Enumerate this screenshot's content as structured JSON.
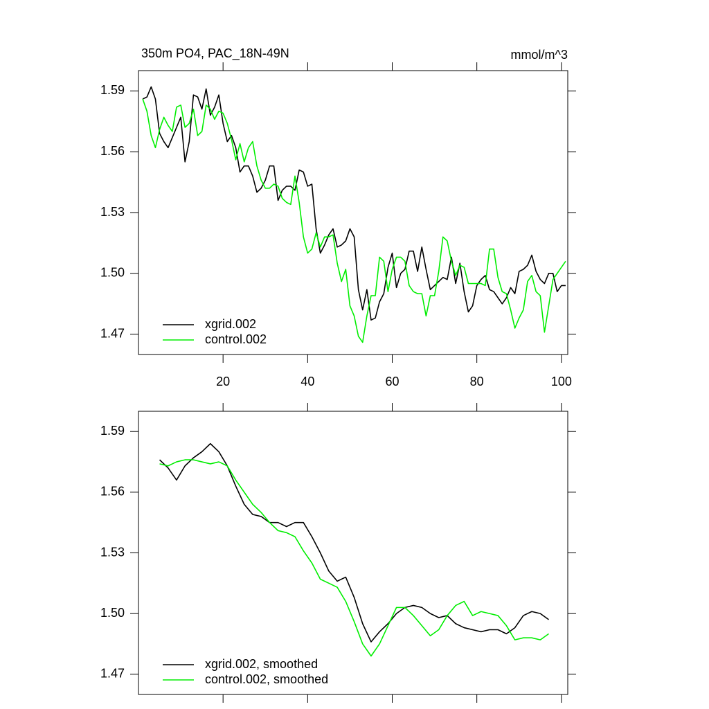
{
  "chart_data": [
    {
      "type": "line",
      "title": "350m PO4, PAC_18N-49N",
      "unit_label": "mmol/m^3",
      "x": [
        1,
        2,
        3,
        4,
        5,
        6,
        7,
        8,
        9,
        10,
        11,
        12,
        13,
        14,
        15,
        16,
        17,
        18,
        19,
        20,
        21,
        22,
        23,
        24,
        25,
        26,
        27,
        28,
        29,
        30,
        31,
        32,
        33,
        34,
        35,
        36,
        37,
        38,
        39,
        40,
        41,
        42,
        43,
        44,
        45,
        46,
        47,
        48,
        49,
        50,
        51,
        52,
        53,
        54,
        55,
        56,
        57,
        58,
        59,
        60,
        61,
        62,
        63,
        64,
        65,
        66,
        67,
        68,
        69,
        70,
        71,
        72,
        73,
        74,
        75,
        76,
        77,
        78,
        79,
        80,
        81,
        82,
        83,
        84,
        85,
        86,
        87,
        88,
        89,
        90,
        91,
        92,
        93,
        94,
        95,
        96,
        97,
        98,
        99,
        100,
        101
      ],
      "series": [
        {
          "name": "xgrid.002",
          "color": "#000000",
          "values": [
            1.586,
            1.587,
            1.592,
            1.586,
            1.569,
            1.565,
            1.562,
            1.567,
            1.572,
            1.577,
            1.555,
            1.565,
            1.588,
            1.587,
            1.581,
            1.591,
            1.578,
            1.582,
            1.588,
            1.574,
            1.565,
            1.568,
            1.562,
            1.55,
            1.553,
            1.553,
            1.548,
            1.54,
            1.542,
            1.546,
            1.553,
            1.553,
            1.536,
            1.541,
            1.543,
            1.543,
            1.541,
            1.551,
            1.55,
            1.543,
            1.544,
            1.522,
            1.51,
            1.514,
            1.519,
            1.522,
            1.513,
            1.514,
            1.516,
            1.522,
            1.518,
            1.492,
            1.482,
            1.492,
            1.477,
            1.478,
            1.486,
            1.49,
            1.503,
            1.51,
            1.493,
            1.5,
            1.502,
            1.511,
            1.511,
            1.501,
            1.513,
            1.502,
            1.492,
            1.494,
            1.496,
            1.498,
            1.497,
            1.508,
            1.495,
            1.505,
            1.491,
            1.481,
            1.484,
            1.494,
            1.497,
            1.499,
            1.492,
            1.491,
            1.488,
            1.485,
            1.488,
            1.493,
            1.49,
            1.501,
            1.502,
            1.504,
            1.509,
            1.501,
            1.497,
            1.495,
            1.5,
            1.5,
            1.491,
            1.494,
            1.494
          ]
        },
        {
          "name": "control.002",
          "color": "#00ee00",
          "values": [
            1.586,
            1.58,
            1.568,
            1.562,
            1.571,
            1.577,
            1.573,
            1.57,
            1.582,
            1.583,
            1.572,
            1.574,
            1.581,
            1.568,
            1.57,
            1.583,
            1.581,
            1.576,
            1.58,
            1.579,
            1.574,
            1.566,
            1.556,
            1.564,
            1.555,
            1.562,
            1.565,
            1.553,
            1.546,
            1.542,
            1.542,
            1.544,
            1.543,
            1.537,
            1.535,
            1.534,
            1.548,
            1.535,
            1.518,
            1.51,
            1.512,
            1.52,
            1.513,
            1.518,
            1.518,
            1.519,
            1.505,
            1.496,
            1.502,
            1.484,
            1.479,
            1.469,
            1.466,
            1.479,
            1.489,
            1.489,
            1.508,
            1.506,
            1.491,
            1.502,
            1.508,
            1.508,
            1.506,
            1.494,
            1.491,
            1.49,
            1.49,
            1.479,
            1.489,
            1.489,
            1.501,
            1.518,
            1.516,
            1.506,
            1.499,
            1.504,
            1.503,
            1.495,
            1.495,
            1.495,
            1.495,
            1.494,
            1.512,
            1.512,
            1.498,
            1.491,
            1.49,
            1.482,
            1.473,
            1.478,
            1.482,
            1.496,
            1.499,
            1.491,
            1.489,
            1.471,
            1.484,
            1.497,
            1.5,
            1.503,
            1.506
          ]
        }
      ],
      "xlim": [
        0,
        101.5
      ],
      "ylim": [
        1.46,
        1.6
      ],
      "xticks": [
        20,
        40,
        60,
        80,
        100
      ],
      "yticks": [
        1.47,
        {
          "value": 1.5,
          "label": "1.50"
        },
        1.53,
        1.56,
        1.59
      ],
      "xtick_labels": true,
      "legend": "lower left"
    },
    {
      "type": "line",
      "x": [
        5,
        7,
        9,
        11,
        13,
        15,
        17,
        19,
        21,
        23,
        25,
        27,
        29,
        31,
        33,
        35,
        37,
        39,
        41,
        43,
        45,
        47,
        49,
        51,
        53,
        55,
        57,
        59,
        61,
        63,
        65,
        67,
        69,
        71,
        73,
        75,
        77,
        79,
        81,
        83,
        85,
        87,
        89,
        91,
        93,
        95,
        97
      ],
      "series": [
        {
          "name": "xgrid.002, smoothed",
          "color": "#000000",
          "values": [
            1.576,
            1.572,
            1.566,
            1.573,
            1.577,
            1.58,
            1.584,
            1.58,
            1.573,
            1.563,
            1.554,
            1.549,
            1.548,
            1.545,
            1.545,
            1.543,
            1.545,
            1.545,
            1.538,
            1.53,
            1.521,
            1.516,
            1.518,
            1.508,
            1.495,
            1.486,
            1.491,
            1.495,
            1.5,
            1.503,
            1.504,
            1.503,
            1.5,
            1.498,
            1.499,
            1.495,
            1.493,
            1.492,
            1.491,
            1.492,
            1.492,
            1.49,
            1.493,
            1.499,
            1.501,
            1.5,
            1.497
          ]
        },
        {
          "name": "control.002, smoothed",
          "color": "#00ee00",
          "values": [
            1.574,
            1.573,
            1.575,
            1.576,
            1.576,
            1.575,
            1.574,
            1.575,
            1.573,
            1.566,
            1.56,
            1.554,
            1.55,
            1.545,
            1.541,
            1.54,
            1.538,
            1.531,
            1.525,
            1.517,
            1.515,
            1.513,
            1.506,
            1.496,
            1.485,
            1.479,
            1.485,
            1.494,
            1.503,
            1.503,
            1.499,
            1.494,
            1.489,
            1.492,
            1.499,
            1.504,
            1.506,
            1.499,
            1.501,
            1.5,
            1.499,
            1.494,
            1.487,
            1.488,
            1.488,
            1.487,
            1.49
          ]
        }
      ],
      "xlim": [
        0,
        101.5
      ],
      "ylim": [
        1.46,
        1.6
      ],
      "xticks": [
        20,
        40,
        60,
        80,
        100
      ],
      "yticks": [
        1.47,
        {
          "value": 1.5,
          "label": "1.50"
        },
        1.53,
        1.56,
        1.59
      ],
      "xtick_labels": false,
      "legend": "lower left"
    }
  ]
}
